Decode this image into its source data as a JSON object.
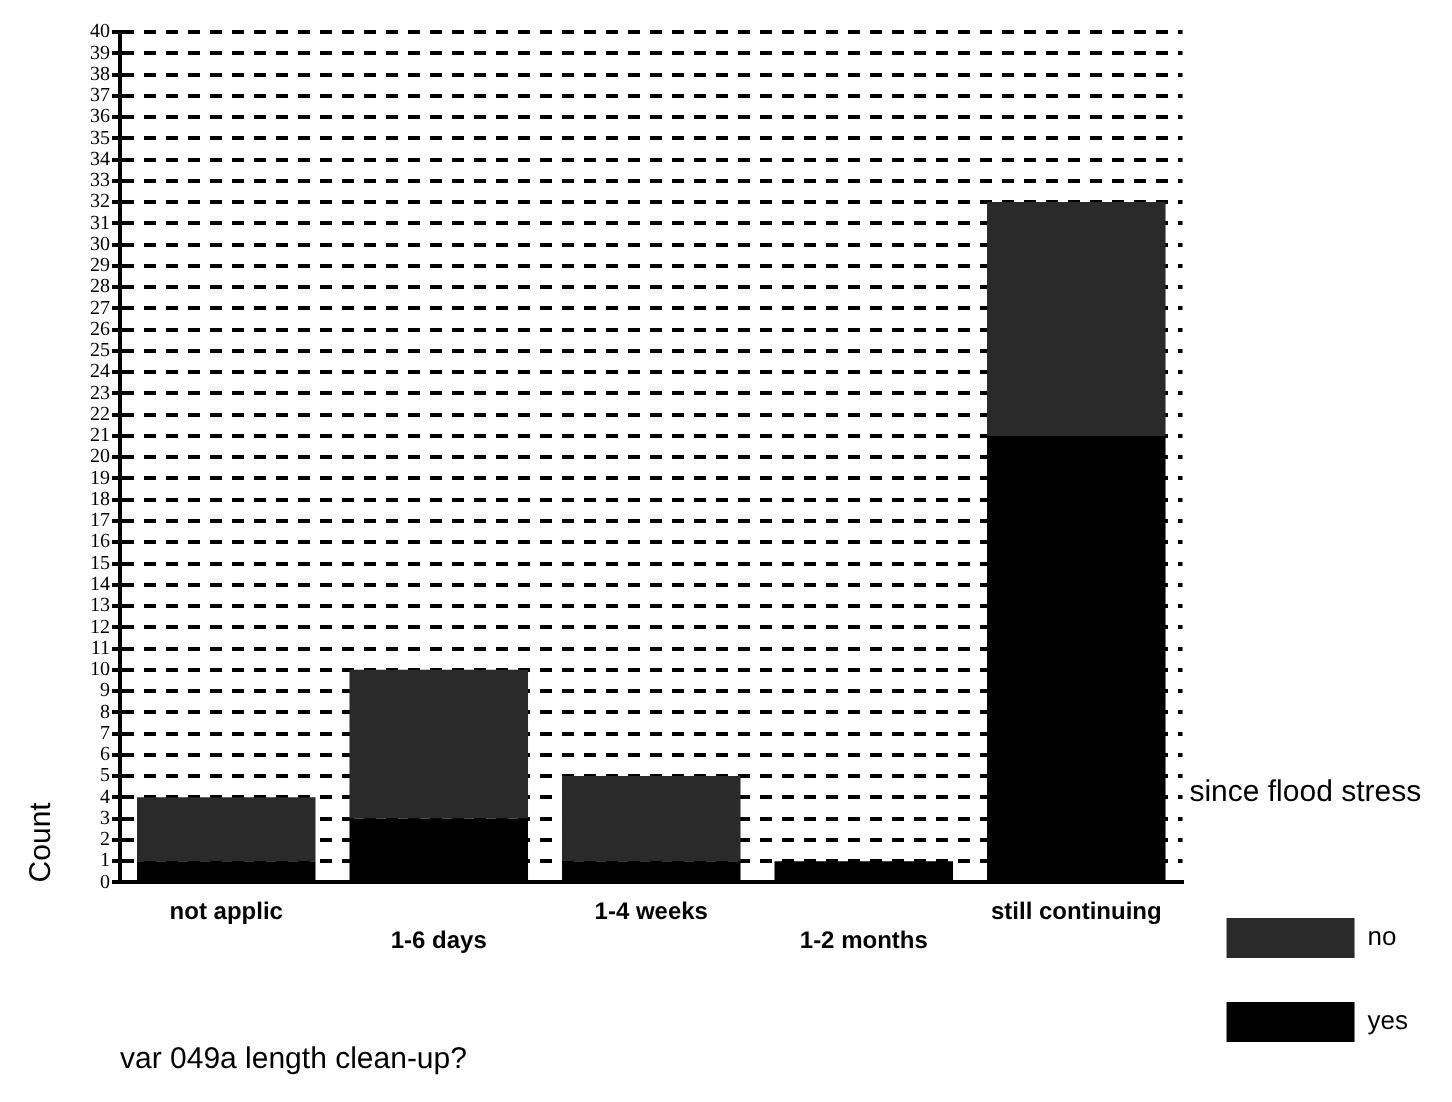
{
  "chart_data": {
    "type": "bar",
    "stacked": true,
    "xlabel": "var 049a length clean-up?",
    "ylabel": "Count",
    "legend_title": "since flood stress",
    "legend": "right",
    "categories": [
      "not applic",
      "1-6 days",
      "1-4 weeks",
      "1-2 months",
      "still continuing"
    ],
    "series": [
      {
        "name": "yes",
        "color": "#000000",
        "values": [
          1,
          3,
          1,
          1,
          21
        ]
      },
      {
        "name": "no",
        "color": "#2a2a2a",
        "values": [
          3,
          7,
          4,
          0,
          11
        ]
      }
    ],
    "ylim": [
      0,
      40
    ],
    "yticks": [
      0,
      1,
      2,
      3,
      4,
      5,
      6,
      7,
      8,
      9,
      10,
      11,
      12,
      13,
      14,
      15,
      16,
      17,
      18,
      19,
      20,
      21,
      22,
      23,
      24,
      25,
      26,
      27,
      28,
      29,
      30,
      31,
      32,
      33,
      34,
      35,
      36,
      37,
      38,
      39,
      40
    ],
    "grid": "y"
  }
}
